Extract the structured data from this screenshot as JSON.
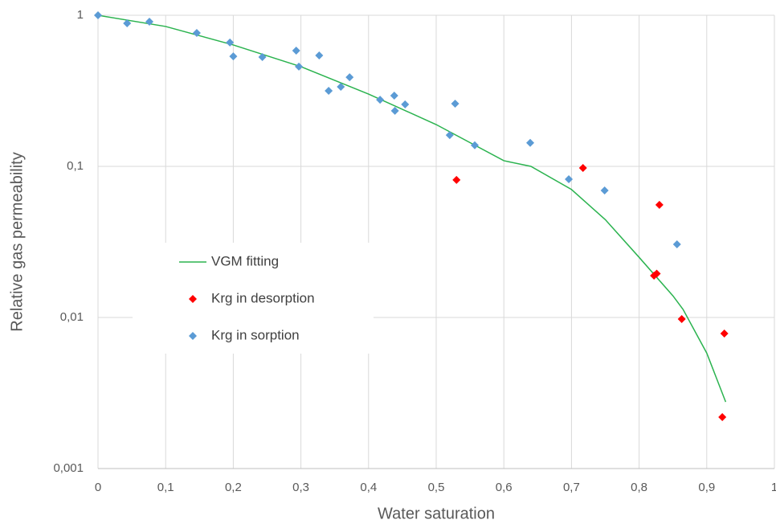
{
  "chart_data": {
    "type": "scatter",
    "xlabel": "Water saturation",
    "ylabel": "Relative gas permeability",
    "xlim": [
      0,
      1
    ],
    "xticks": [
      0,
      {
        "value": 0.1,
        "label": "0,1"
      },
      {
        "value": 0.2,
        "label": "0,2"
      },
      {
        "value": 0.3,
        "label": "0,3"
      },
      {
        "value": 0.4,
        "label": "0,4"
      },
      {
        "value": 0.5,
        "label": "0,5"
      },
      {
        "value": 0.6,
        "label": "0,6"
      },
      {
        "value": 0.7,
        "label": "0,7"
      },
      {
        "value": 0.8,
        "label": "0,8"
      },
      {
        "value": 0.9,
        "label": "0,9"
      },
      1
    ],
    "ylim": [
      0.001,
      1
    ],
    "yticks": [
      {
        "value": 0.001,
        "label": "0,001"
      },
      {
        "value": 0.01,
        "label": "0,01"
      },
      {
        "value": 0.1,
        "label": "0,1"
      },
      1
    ],
    "yscale": "log",
    "grid": true,
    "legend": "center-left",
    "series": [
      {
        "name": "VGM fitting",
        "mode": "line",
        "color": "#2bb34f",
        "x": [
          0,
          0.1,
          0.2,
          0.3,
          0.4,
          0.5,
          0.6,
          0.64,
          0.7,
          0.75,
          0.8,
          0.85,
          0.865,
          0.9,
          0.928
        ],
        "values": [
          1,
          0.843,
          0.636,
          0.457,
          0.301,
          0.189,
          0.109,
          0.1,
          0.0703,
          0.0444,
          0.025,
          0.0139,
          0.0113,
          0.00581,
          0.00276
        ]
      },
      {
        "name": "Krg in desorption",
        "mode": "markers",
        "color": "#ff0000",
        "x": [
          0.53,
          0.717,
          0.83,
          0.822,
          0.826,
          0.863,
          0.926,
          0.923
        ],
        "values": [
          0.0813,
          0.0976,
          0.0556,
          0.0189,
          0.0195,
          0.00976,
          0.00783,
          0.00219
        ]
      },
      {
        "name": "Krg in sorption",
        "mode": "markers",
        "color": "#5b9bd5",
        "x": [
          0,
          0.043,
          0.076,
          0.146,
          0.195,
          0.2,
          0.243,
          0.293,
          0.297,
          0.327,
          0.372,
          0.359,
          0.341,
          0.417,
          0.438,
          0.454,
          0.439,
          0.528,
          0.52,
          0.557,
          0.639,
          0.696,
          0.749,
          0.856
        ],
        "values": [
          1,
          0.885,
          0.906,
          0.764,
          0.66,
          0.535,
          0.529,
          0.583,
          0.457,
          0.542,
          0.389,
          0.336,
          0.316,
          0.276,
          0.294,
          0.257,
          0.233,
          0.26,
          0.161,
          0.138,
          0.143,
          0.0822,
          0.0692,
          0.0305
        ]
      }
    ]
  }
}
